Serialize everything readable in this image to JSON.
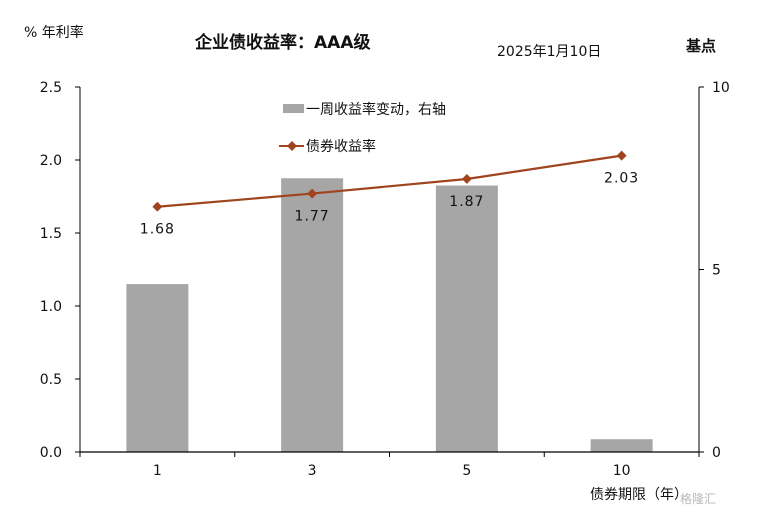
{
  "title": "企业债收益率：AAA级",
  "date": "2025年1月10日",
  "left_unit": "% 年利率",
  "right_unit": "基点",
  "x_axis_label": "债券期限（年）",
  "watermark": "格隆汇",
  "colors": {
    "bar": "#a6a6a6",
    "line": "#a0441e",
    "axis": "#000000"
  },
  "chart_data": {
    "type": "bar+line",
    "categories": [
      "1",
      "3",
      "5",
      "10"
    ],
    "series": [
      {
        "name": "一周收益率变动，右轴",
        "type": "bar",
        "axis": "right",
        "values": [
          4.6,
          7.5,
          7.3,
          0.35
        ]
      },
      {
        "name": "债券收益率",
        "type": "line",
        "axis": "left",
        "values": [
          1.68,
          1.77,
          1.87,
          2.03
        ]
      }
    ],
    "data_labels": [
      "1.68",
      "1.77",
      "1.87",
      "2.03"
    ],
    "y_left": {
      "range": [
        0,
        2.5
      ],
      "ticks": [
        "0.0",
        "0.5",
        "1.0",
        "1.5",
        "2.0",
        "2.5"
      ]
    },
    "y_right": {
      "range": [
        0,
        10
      ],
      "ticks": [
        "0",
        "5",
        "10"
      ]
    },
    "legend": "top-center"
  }
}
